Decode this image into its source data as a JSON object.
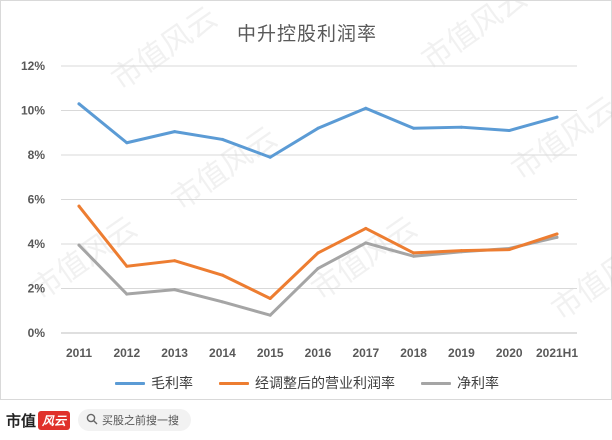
{
  "watermark_text": "市值风云",
  "footer": {
    "brand_text": "市值",
    "brand_badge": "风云",
    "search_placeholder": "买股之前搜一搜"
  },
  "chart_data": {
    "type": "line",
    "title": "中升控股利润率",
    "categories": [
      "2011",
      "2012",
      "2013",
      "2014",
      "2015",
      "2016",
      "2017",
      "2018",
      "2019",
      "2020",
      "2021H1"
    ],
    "y_tick_labels": [
      "0%",
      "2%",
      "4%",
      "6%",
      "8%",
      "10%",
      "12%"
    ],
    "ylim": [
      0,
      12
    ],
    "xlabel": "",
    "ylabel": "",
    "grid": true,
    "legend_position": "bottom",
    "series": [
      {
        "name": "毛利率",
        "color": "#5b9bd5",
        "values": [
          10.3,
          8.55,
          9.05,
          8.7,
          7.9,
          9.2,
          10.1,
          9.2,
          9.25,
          9.1,
          9.7
        ]
      },
      {
        "name": "经调整后的营业利润率",
        "color": "#ed7d31",
        "values": [
          5.7,
          3.0,
          3.25,
          2.6,
          1.55,
          3.6,
          4.7,
          3.6,
          3.7,
          3.75,
          4.45
        ]
      },
      {
        "name": "净利率",
        "color": "#a5a5a5",
        "values": [
          3.95,
          1.75,
          1.95,
          1.4,
          0.8,
          2.9,
          4.05,
          3.45,
          3.65,
          3.8,
          4.3
        ]
      }
    ]
  }
}
